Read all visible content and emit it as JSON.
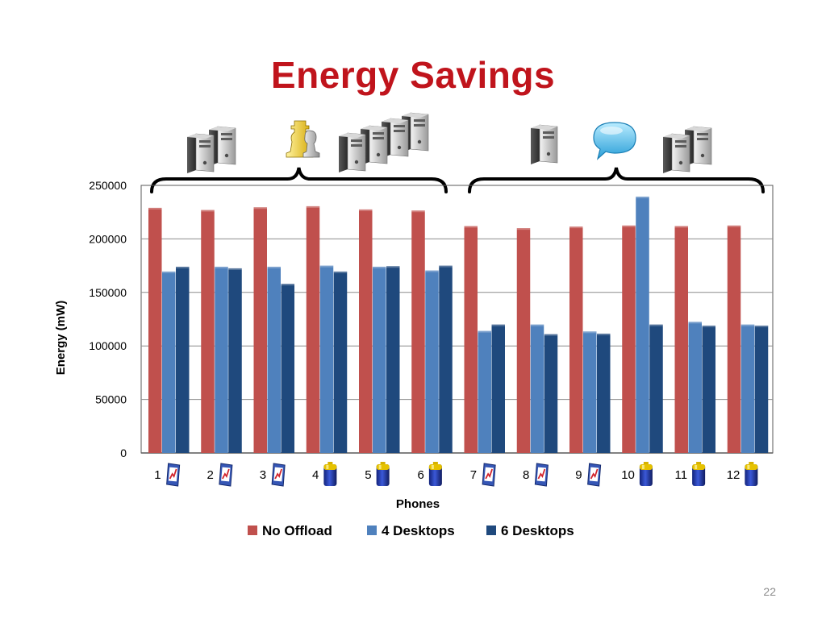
{
  "slide": {
    "title": "Energy Savings",
    "page_number": "22"
  },
  "decorations": {
    "group_icons": [
      "server-pair-icon",
      "chess-pieces-icon",
      "server-cluster-icon",
      "server-icon",
      "speech-bubble-icon",
      "server-pair-icon"
    ],
    "phone_icons": [
      "bar-chart-icon",
      "bar-chart-icon",
      "bar-chart-icon",
      "battery-icon",
      "battery-icon",
      "battery-icon",
      "bar-chart-icon",
      "bar-chart-icon",
      "bar-chart-icon",
      "battery-icon",
      "battery-icon",
      "battery-icon"
    ]
  },
  "chart_data": {
    "type": "bar",
    "title": "",
    "xlabel": "Phones",
    "ylabel": "Energy (mW)",
    "ylim": [
      0,
      250000
    ],
    "yticks": [
      0,
      50000,
      100000,
      150000,
      200000,
      250000
    ],
    "grid": true,
    "legend_position": "bottom",
    "categories": [
      "1",
      "2",
      "3",
      "4",
      "5",
      "6",
      "7",
      "8",
      "9",
      "10",
      "11",
      "12"
    ],
    "series": [
      {
        "name": "No Offload",
        "color": "#c0504d",
        "values": [
          229000,
          227000,
          229500,
          230500,
          227500,
          226500,
          212000,
          210000,
          211500,
          212500,
          212000,
          212500
        ]
      },
      {
        "name": "4 Desktops",
        "color": "#4f81bd",
        "values": [
          169500,
          174000,
          174000,
          175000,
          174000,
          170500,
          114000,
          120000,
          113500,
          239500,
          122500,
          120000
        ]
      },
      {
        "name": "6 Desktops",
        "color": "#1f497d",
        "values": [
          174000,
          172500,
          158000,
          169500,
          174500,
          175000,
          120000,
          111000,
          111500,
          120000,
          119000,
          119000
        ]
      }
    ]
  }
}
